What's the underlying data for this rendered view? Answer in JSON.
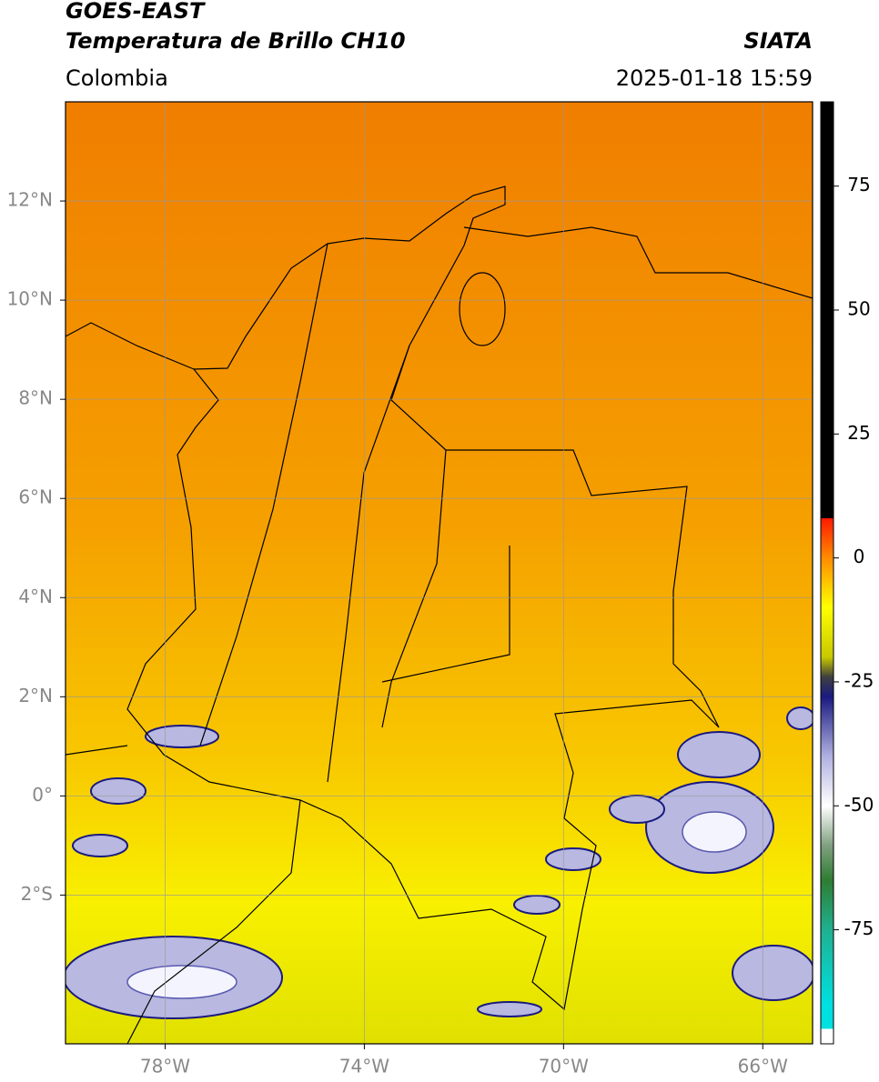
{
  "chart_data": {
    "type": "map",
    "title": "GOES-EAST",
    "subtitle": "Temperatura de Brillo CH10",
    "region": "Colombia",
    "source": "SIATA",
    "datetime": "2025-01-18 15:59",
    "xlim": [
      -80,
      -65
    ],
    "ylim": [
      -5,
      14
    ],
    "xticks": [
      {
        "value": -78,
        "label": "78°W"
      },
      {
        "value": -74,
        "label": "74°W"
      },
      {
        "value": -70,
        "label": "70°W"
      },
      {
        "value": -66,
        "label": "66°W"
      }
    ],
    "yticks": [
      {
        "value": 12,
        "label": "12°N"
      },
      {
        "value": 10,
        "label": "10°N"
      },
      {
        "value": 8,
        "label": "8°N"
      },
      {
        "value": 6,
        "label": "6°N"
      },
      {
        "value": 4,
        "label": "4°N"
      },
      {
        "value": 2,
        "label": "2°N"
      },
      {
        "value": 0,
        "label": "0°"
      },
      {
        "value": -2,
        "label": "2°S"
      }
    ],
    "grid": true,
    "clim": [
      -98,
      92
    ],
    "cticks": [
      75,
      50,
      25,
      0,
      -25,
      -50,
      -75
    ],
    "colormap": [
      {
        "value": 92,
        "color": "#000000"
      },
      {
        "value": 8,
        "color": "#000000"
      },
      {
        "value": 8,
        "color": "#ff1a00"
      },
      {
        "value": 0,
        "color": "#ff8c00"
      },
      {
        "value": -10,
        "color": "#ffff00"
      },
      {
        "value": -20,
        "color": "#c8c800"
      },
      {
        "value": -24,
        "color": "#404040"
      },
      {
        "value": -28,
        "color": "#1a1a80"
      },
      {
        "value": -40,
        "color": "#b0b0e0"
      },
      {
        "value": -50,
        "color": "#ffffff"
      },
      {
        "value": -58,
        "color": "#80a080"
      },
      {
        "value": -65,
        "color": "#2e7d32"
      },
      {
        "value": -75,
        "color": "#20b090"
      },
      {
        "value": -90,
        "color": "#00e0e0"
      },
      {
        "value": -95,
        "color": "#00e0e0"
      },
      {
        "value": -95,
        "color": "#ffffff"
      },
      {
        "value": -98,
        "color": "#ffffff"
      }
    ]
  }
}
